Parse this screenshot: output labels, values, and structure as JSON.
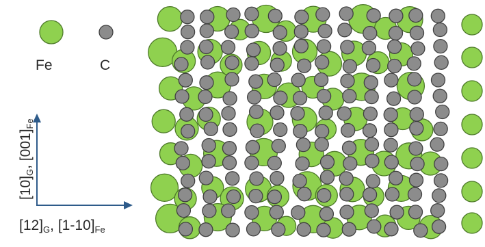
{
  "legend": {
    "fe_label": "Fe",
    "c_label": "C"
  },
  "axes": {
    "y_axis": {
      "main1": "[10]",
      "sub1": "G",
      "sep": ", [001]",
      "sub2": "Fe"
    },
    "x_axis": {
      "main1": "[12]",
      "sub1": "G",
      "sep": ", [1-10]",
      "sub2": "Fe"
    }
  },
  "colors": {
    "fe_fill": "#8fd14f",
    "fe_stroke": "#4e7a2a",
    "c_fill": "#8c8c8c",
    "c_stroke": "#404040",
    "arrow": "#2e5b8a"
  }
}
